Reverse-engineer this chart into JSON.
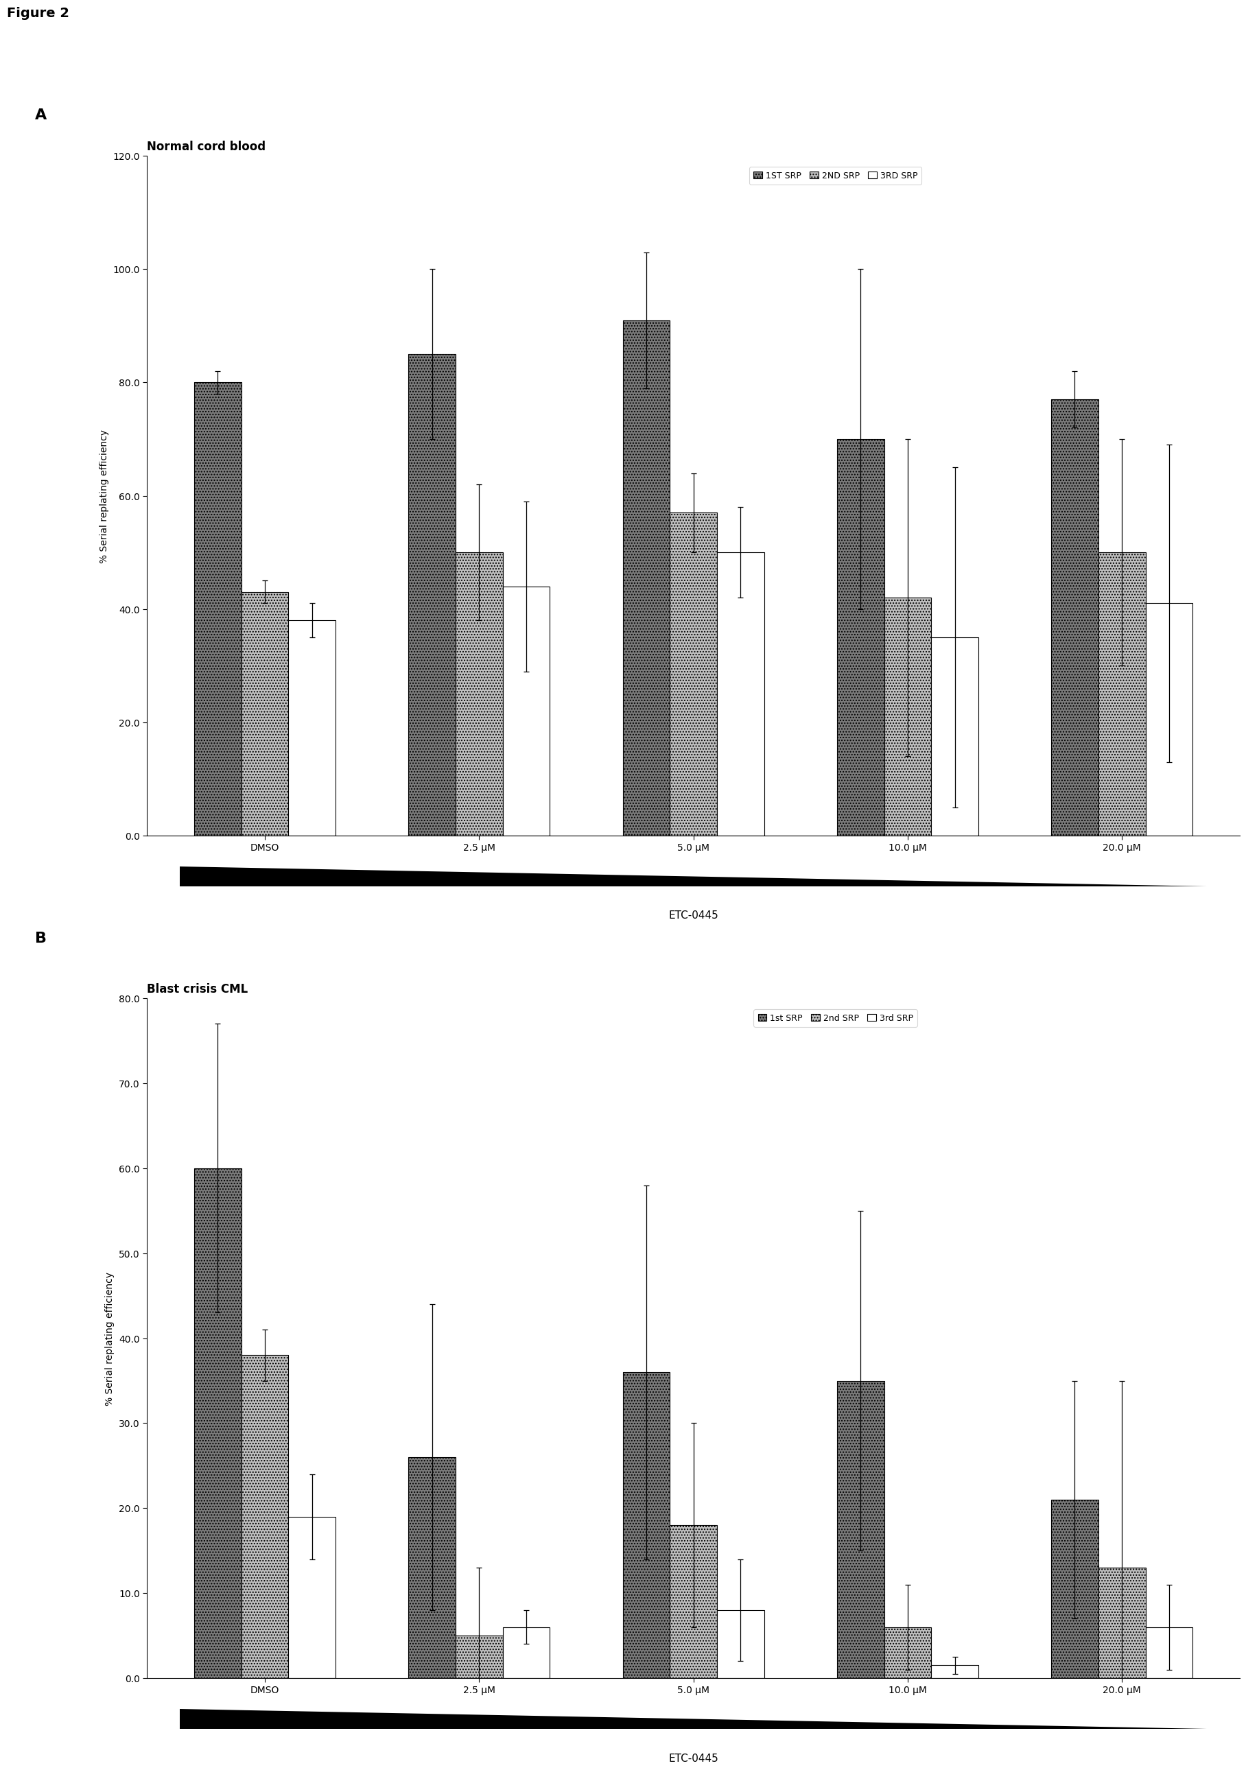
{
  "figure_title": "Figure 2",
  "panel_A": {
    "title": "Normal cord blood",
    "ylabel": "% Serial replating efficiency",
    "xlabel": "ETC-0445",
    "ylim": [
      0,
      120.0
    ],
    "yticks": [
      0.0,
      20.0,
      40.0,
      60.0,
      80.0,
      100.0,
      120.0
    ],
    "categories": [
      "DMSO",
      "2.5 μM",
      "5.0 μM",
      "10.0 μM",
      "20.0 μM"
    ],
    "legend_labels": [
      "1ST SRP",
      "2ND SRP",
      "3RD SRP"
    ],
    "bar1_values": [
      80.0,
      85.0,
      91.0,
      70.0,
      77.0
    ],
    "bar2_values": [
      43.0,
      50.0,
      57.0,
      42.0,
      50.0
    ],
    "bar3_values": [
      38.0,
      44.0,
      50.0,
      35.0,
      41.0
    ],
    "bar1_errors": [
      2.0,
      15.0,
      12.0,
      30.0,
      5.0
    ],
    "bar2_errors": [
      2.0,
      12.0,
      7.0,
      28.0,
      20.0
    ],
    "bar3_errors": [
      3.0,
      15.0,
      8.0,
      30.0,
      28.0
    ]
  },
  "panel_B": {
    "title": "Blast crisis CML",
    "ylabel": "% Serial replating efficiency",
    "xlabel": "ETC-0445",
    "ylim": [
      0,
      80.0
    ],
    "yticks": [
      0.0,
      10.0,
      20.0,
      30.0,
      40.0,
      50.0,
      60.0,
      70.0,
      80.0
    ],
    "categories": [
      "DMSO",
      "2.5 μM",
      "5.0 μM",
      "10.0 μM",
      "20.0 μM"
    ],
    "legend_labels": [
      "1st SRP",
      "2nd SRP",
      "3rd SRP"
    ],
    "bar1_values": [
      60.0,
      26.0,
      36.0,
      35.0,
      21.0
    ],
    "bar2_values": [
      38.0,
      5.0,
      18.0,
      6.0,
      13.0
    ],
    "bar3_values": [
      19.0,
      6.0,
      8.0,
      1.5,
      6.0
    ],
    "bar1_errors": [
      17.0,
      18.0,
      22.0,
      20.0,
      14.0
    ],
    "bar2_errors": [
      3.0,
      8.0,
      12.0,
      5.0,
      22.0
    ],
    "bar3_errors": [
      5.0,
      2.0,
      6.0,
      1.0,
      5.0
    ]
  },
  "bar1_color": "#7a7a7a",
  "bar2_color": "#c0c0c0",
  "bar3_color": "#ffffff",
  "bar1_hatch": "....",
  "bar2_hatch": "....",
  "bar3_hatch": "",
  "bar_edgecolor": "#000000",
  "errorbar_color": "#000000",
  "background_color": "#ffffff",
  "bar_width": 0.22
}
